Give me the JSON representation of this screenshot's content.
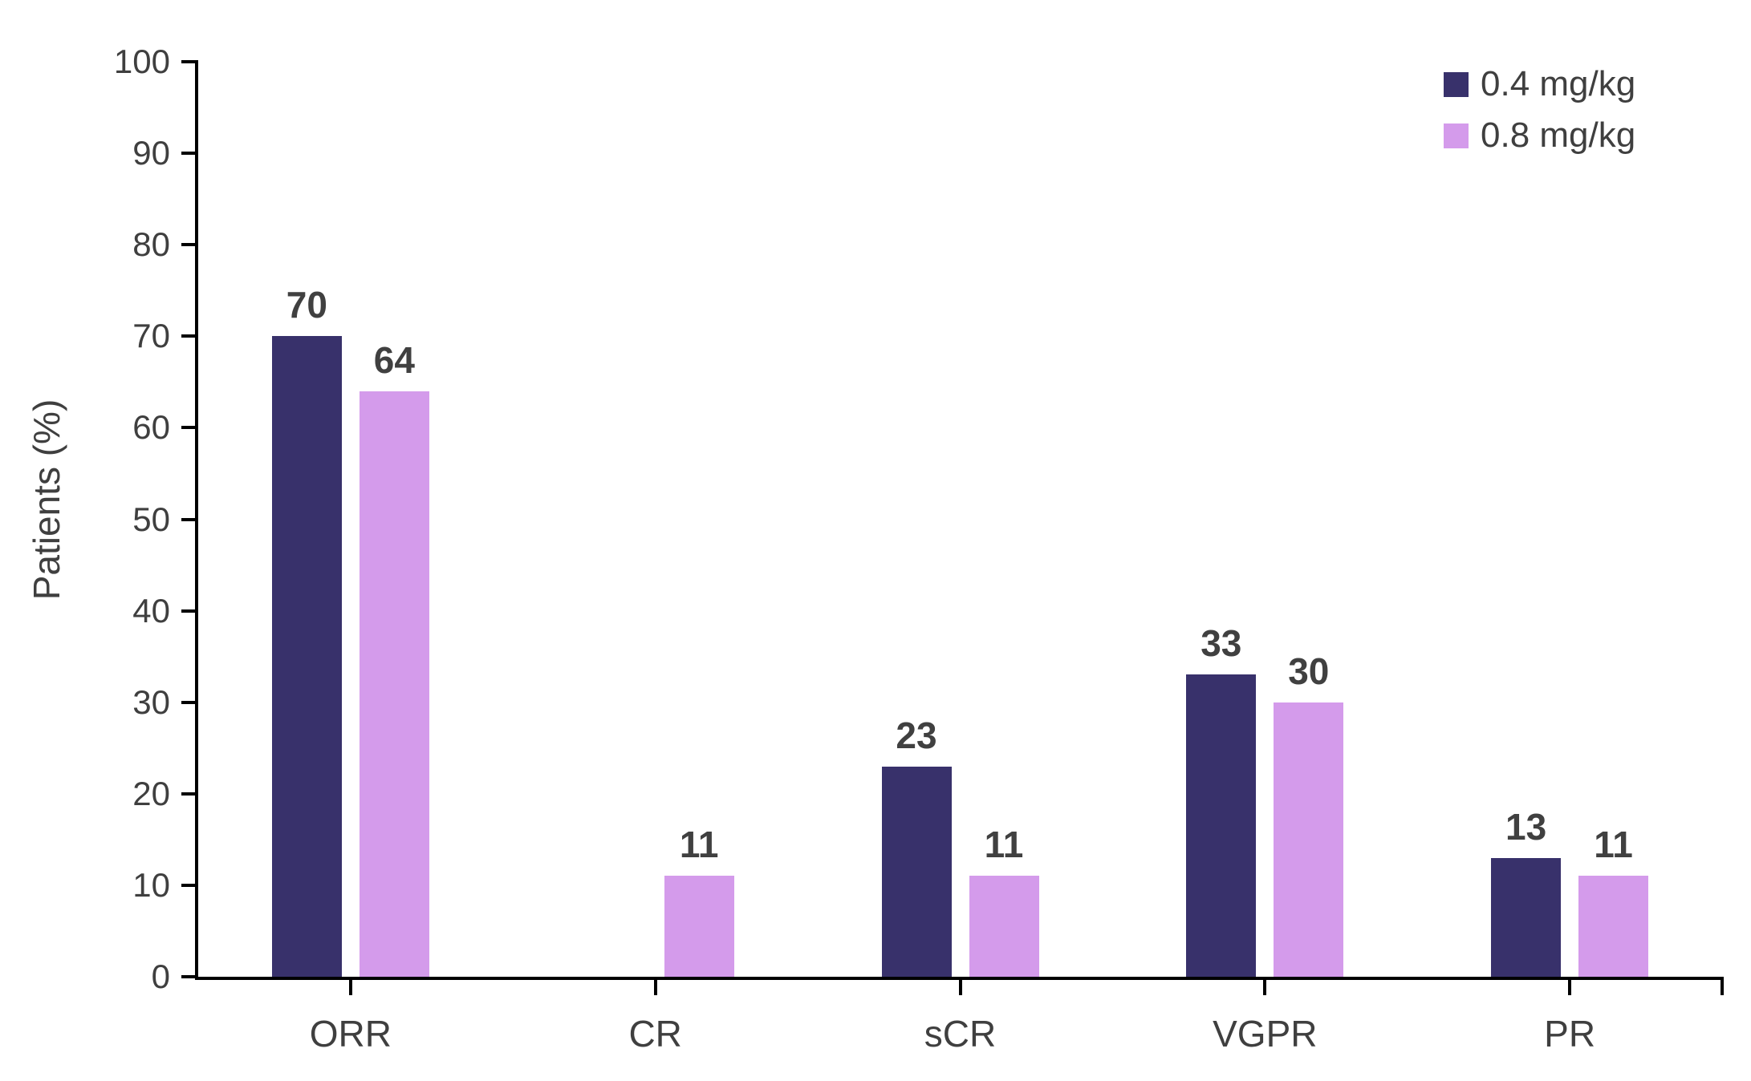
{
  "chart_data": {
    "type": "bar",
    "categories": [
      "ORR",
      "CR",
      "sCR",
      "VGPR",
      "PR"
    ],
    "series": [
      {
        "name": "0.4 mg/kg",
        "color": "#38316B",
        "values": [
          70,
          null,
          23,
          33,
          13
        ]
      },
      {
        "name": "0.8 mg/kg",
        "color": "#D49BEB",
        "values": [
          64,
          11,
          11,
          30,
          11
        ]
      }
    ],
    "title": "",
    "xlabel": "",
    "ylabel": "Patients (%)",
    "ylim": [
      0,
      100
    ],
    "yticks": [
      0,
      10,
      20,
      30,
      40,
      50,
      60,
      70,
      80,
      90,
      100
    ],
    "grid": false,
    "legend_position": "top-right",
    "bar_value_labels": true
  },
  "styles": {
    "axis_color": "#000000",
    "tick_label_color": "#3F3F3F",
    "value_label_color": "#404040",
    "background": "#FFFFFF"
  }
}
